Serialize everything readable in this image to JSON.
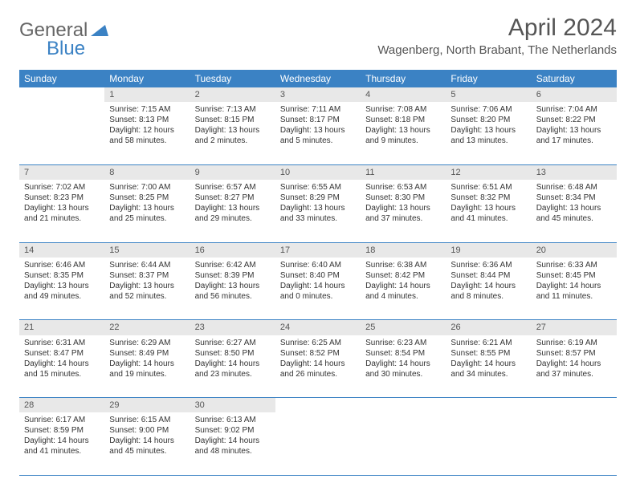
{
  "logo": {
    "general": "General",
    "blue": "Blue"
  },
  "title": "April 2024",
  "location": "Wagenberg, North Brabant, The Netherlands",
  "colors": {
    "header_bg": "#3b82c4",
    "daynum_bg": "#e8e8e8",
    "text": "#333333",
    "page_bg": "#ffffff"
  },
  "weekdays": [
    "Sunday",
    "Monday",
    "Tuesday",
    "Wednesday",
    "Thursday",
    "Friday",
    "Saturday"
  ],
  "weeks": [
    [
      null,
      {
        "n": "1",
        "sr": "7:15 AM",
        "ss": "8:13 PM",
        "dl": "12 hours and 58 minutes."
      },
      {
        "n": "2",
        "sr": "7:13 AM",
        "ss": "8:15 PM",
        "dl": "13 hours and 2 minutes."
      },
      {
        "n": "3",
        "sr": "7:11 AM",
        "ss": "8:17 PM",
        "dl": "13 hours and 5 minutes."
      },
      {
        "n": "4",
        "sr": "7:08 AM",
        "ss": "8:18 PM",
        "dl": "13 hours and 9 minutes."
      },
      {
        "n": "5",
        "sr": "7:06 AM",
        "ss": "8:20 PM",
        "dl": "13 hours and 13 minutes."
      },
      {
        "n": "6",
        "sr": "7:04 AM",
        "ss": "8:22 PM",
        "dl": "13 hours and 17 minutes."
      }
    ],
    [
      {
        "n": "7",
        "sr": "7:02 AM",
        "ss": "8:23 PM",
        "dl": "13 hours and 21 minutes."
      },
      {
        "n": "8",
        "sr": "7:00 AM",
        "ss": "8:25 PM",
        "dl": "13 hours and 25 minutes."
      },
      {
        "n": "9",
        "sr": "6:57 AM",
        "ss": "8:27 PM",
        "dl": "13 hours and 29 minutes."
      },
      {
        "n": "10",
        "sr": "6:55 AM",
        "ss": "8:29 PM",
        "dl": "13 hours and 33 minutes."
      },
      {
        "n": "11",
        "sr": "6:53 AM",
        "ss": "8:30 PM",
        "dl": "13 hours and 37 minutes."
      },
      {
        "n": "12",
        "sr": "6:51 AM",
        "ss": "8:32 PM",
        "dl": "13 hours and 41 minutes."
      },
      {
        "n": "13",
        "sr": "6:48 AM",
        "ss": "8:34 PM",
        "dl": "13 hours and 45 minutes."
      }
    ],
    [
      {
        "n": "14",
        "sr": "6:46 AM",
        "ss": "8:35 PM",
        "dl": "13 hours and 49 minutes."
      },
      {
        "n": "15",
        "sr": "6:44 AM",
        "ss": "8:37 PM",
        "dl": "13 hours and 52 minutes."
      },
      {
        "n": "16",
        "sr": "6:42 AM",
        "ss": "8:39 PM",
        "dl": "13 hours and 56 minutes."
      },
      {
        "n": "17",
        "sr": "6:40 AM",
        "ss": "8:40 PM",
        "dl": "14 hours and 0 minutes."
      },
      {
        "n": "18",
        "sr": "6:38 AM",
        "ss": "8:42 PM",
        "dl": "14 hours and 4 minutes."
      },
      {
        "n": "19",
        "sr": "6:36 AM",
        "ss": "8:44 PM",
        "dl": "14 hours and 8 minutes."
      },
      {
        "n": "20",
        "sr": "6:33 AM",
        "ss": "8:45 PM",
        "dl": "14 hours and 11 minutes."
      }
    ],
    [
      {
        "n": "21",
        "sr": "6:31 AM",
        "ss": "8:47 PM",
        "dl": "14 hours and 15 minutes."
      },
      {
        "n": "22",
        "sr": "6:29 AM",
        "ss": "8:49 PM",
        "dl": "14 hours and 19 minutes."
      },
      {
        "n": "23",
        "sr": "6:27 AM",
        "ss": "8:50 PM",
        "dl": "14 hours and 23 minutes."
      },
      {
        "n": "24",
        "sr": "6:25 AM",
        "ss": "8:52 PM",
        "dl": "14 hours and 26 minutes."
      },
      {
        "n": "25",
        "sr": "6:23 AM",
        "ss": "8:54 PM",
        "dl": "14 hours and 30 minutes."
      },
      {
        "n": "26",
        "sr": "6:21 AM",
        "ss": "8:55 PM",
        "dl": "14 hours and 34 minutes."
      },
      {
        "n": "27",
        "sr": "6:19 AM",
        "ss": "8:57 PM",
        "dl": "14 hours and 37 minutes."
      }
    ],
    [
      {
        "n": "28",
        "sr": "6:17 AM",
        "ss": "8:59 PM",
        "dl": "14 hours and 41 minutes."
      },
      {
        "n": "29",
        "sr": "6:15 AM",
        "ss": "9:00 PM",
        "dl": "14 hours and 45 minutes."
      },
      {
        "n": "30",
        "sr": "6:13 AM",
        "ss": "9:02 PM",
        "dl": "14 hours and 48 minutes."
      },
      null,
      null,
      null,
      null
    ]
  ],
  "labels": {
    "sunrise": "Sunrise: ",
    "sunset": "Sunset: ",
    "daylight": "Daylight: "
  }
}
